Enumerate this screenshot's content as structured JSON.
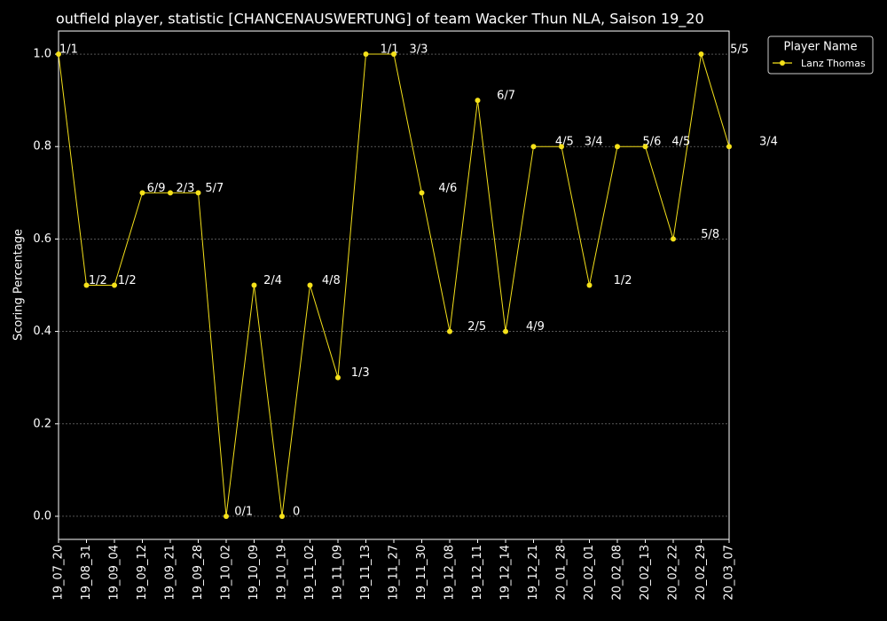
{
  "chart_data": {
    "type": "line",
    "title": "outfield player, statistic [CHANCENAUSWERTUNG] of team Wacker Thun NLA, Saison 19_20",
    "y_label": "Scoring Percentage",
    "categories": [
      "19_07_20",
      "19_08_31",
      "19_09_04",
      "19_09_12",
      "19_09_21",
      "19_09_28",
      "19_10_02",
      "19_10_09",
      "19_10_19",
      "19_11_02",
      "19_11_09",
      "19_11_13",
      "19_11_27",
      "19_11_30",
      "19_12_08",
      "19_12_11",
      "19_12_14",
      "19_12_21",
      "20_01_28",
      "20_02_01",
      "20_02_08",
      "20_02_13",
      "20_02_22",
      "20_02_29",
      "20_03_07"
    ],
    "series": [
      {
        "name": "Lanz Thomas",
        "color": "#f5e11a",
        "values": [
          1.0,
          0.5,
          0.5,
          0.7,
          0.7,
          0.7,
          0.0,
          0.5,
          0.0,
          0.5,
          0.3,
          1.0,
          1.0,
          0.7,
          0.4,
          0.9,
          0.4,
          0.8,
          0.8,
          0.5,
          0.8,
          0.8,
          0.6,
          1.0,
          0.8
        ],
        "value_labels": [
          "1/1",
          "1/2",
          "1/2",
          "6/9",
          "2/3",
          "5/7",
          "0/1",
          "2/4",
          "0",
          "4/8",
          "1/3",
          "1/1",
          "3/3",
          "4/6",
          "2/5",
          "6/7",
          "4/9",
          "4/5",
          "3/4",
          "1/2",
          "5/6",
          "4/5",
          "5/8",
          "5/5",
          "3/4"
        ]
      }
    ],
    "ylim": [
      -0.05,
      1.05
    ],
    "yticks": [
      {
        "value": 0,
        "label": "0.0"
      },
      0.2,
      0.4,
      0.6,
      0.8,
      {
        "value": 1,
        "label": "1.0"
      }
    ],
    "grid": true,
    "legend_title": "Player Name",
    "legend_position": "outside-right"
  }
}
